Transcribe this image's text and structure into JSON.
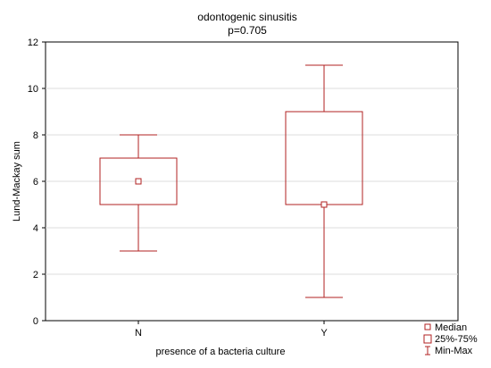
{
  "chart_data": {
    "type": "boxplot",
    "title": "odontogenic sinusitis",
    "subtitle": "p=0.705",
    "xlabel": "presence of a bacteria culture",
    "ylabel": "Lund-Mackay sum",
    "ylim": [
      0,
      12
    ],
    "yticks": [
      "0",
      "2",
      "4",
      "6",
      "8",
      "10",
      "12"
    ],
    "grid": true,
    "categories": [
      "N",
      "Y"
    ],
    "boxes": [
      {
        "category": "N",
        "min": 3,
        "q1": 5,
        "median": 6,
        "q3": 7,
        "max": 8
      },
      {
        "category": "Y",
        "min": 1,
        "q1": 5,
        "median": 5,
        "q3": 9,
        "max": 11
      }
    ],
    "legend": {
      "placement": "bottom-right",
      "entries": [
        "Median",
        "25%-75%",
        "Min-Max"
      ]
    },
    "color": "#b22222"
  }
}
